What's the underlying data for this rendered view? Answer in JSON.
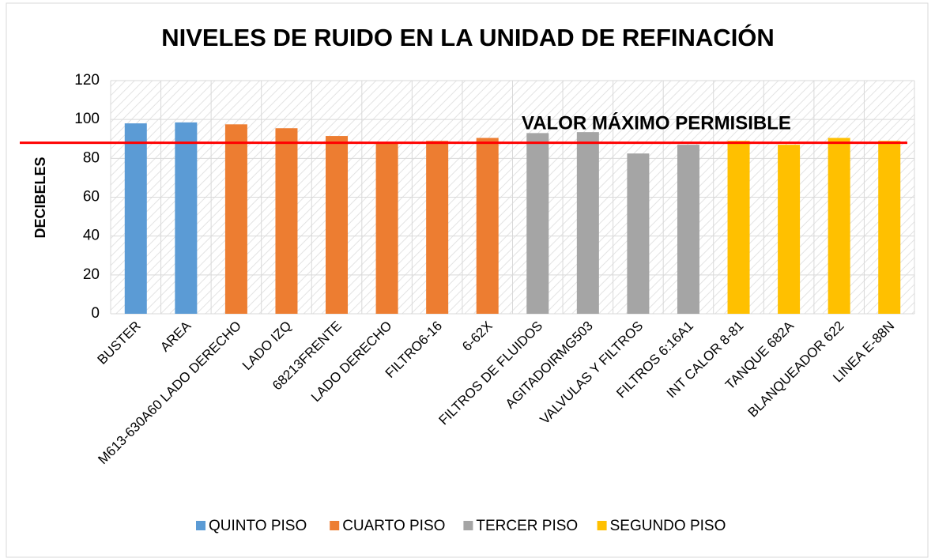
{
  "chart_data": {
    "type": "bar",
    "title": "NIVELES DE RUIDO EN LA UNIDAD DE REFINACIÓN",
    "y_label": "DECIBELES",
    "annotation": "VALOR MÁXIMO PERMISIBLE",
    "threshold": 88,
    "threshold_color": "#ff0000",
    "categories": [
      "BUSTER",
      "AREA",
      "M613-630A60 LADO DERECHO",
      "LADO IZQ",
      "68213FRENTE",
      "LADO DERECHO",
      "FILTRO6-16",
      "6-62X",
      "FILTROS DE FLUIDOS",
      "AGITADOIRMG503",
      "VALVULAS Y FILTROS",
      "FILTROS 6:16A1",
      "INT CALOR 8-81",
      "TANQUE 682A",
      "BLANQUEADOR 622",
      "LINEA E-88N"
    ],
    "series": [
      {
        "name": "QUINTO PISO",
        "color": "#5b9bd5",
        "values": [
          98,
          98.5,
          null,
          null,
          null,
          null,
          null,
          null,
          null,
          null,
          null,
          null,
          null,
          null,
          null,
          null
        ]
      },
      {
        "name": "CUARTO PISO",
        "color": "#ed7d31",
        "values": [
          null,
          null,
          97.5,
          95.5,
          91.5,
          87.5,
          89,
          90.5,
          null,
          null,
          null,
          null,
          null,
          null,
          null,
          null
        ]
      },
      {
        "name": "TERCER PISO",
        "color": "#a5a5a5",
        "values": [
          null,
          null,
          null,
          null,
          null,
          null,
          null,
          null,
          93,
          93.5,
          82.5,
          87,
          null,
          null,
          null,
          null
        ]
      },
      {
        "name": "SEGUNDO PISO",
        "color": "#ffc000",
        "values": [
          null,
          null,
          null,
          null,
          null,
          null,
          null,
          null,
          null,
          null,
          null,
          null,
          89,
          87,
          90.5,
          89
        ]
      }
    ],
    "ylim": [
      0,
      120
    ],
    "yticks": [
      0,
      20,
      40,
      60,
      80,
      100,
      120
    ],
    "grid": true,
    "legend": "bottom"
  }
}
